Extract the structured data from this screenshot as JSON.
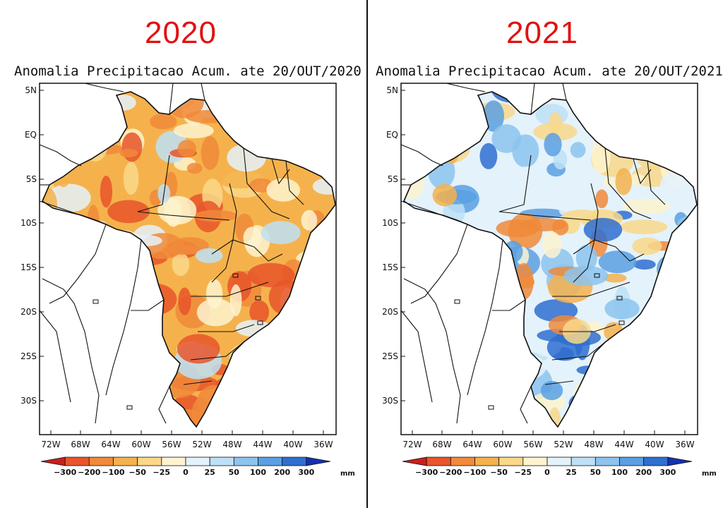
{
  "panels": [
    {
      "year": "2020",
      "title": "Anomalia Precipitacao Acum. ate 20/OUT/2020",
      "tone": "dry"
    },
    {
      "year": "2021",
      "title": "Anomalia Precipitacao Acum. ate 20/OUT/2021",
      "tone": "mixed"
    }
  ],
  "lat_labels": [
    "5N",
    "EQ",
    "5S",
    "10S",
    "15S",
    "20S",
    "25S",
    "30S"
  ],
  "lon_labels": [
    "72W",
    "68W",
    "64W",
    "60W",
    "56W",
    "52W",
    "48W",
    "44W",
    "40W",
    "36W"
  ],
  "colorbar": {
    "labels": [
      "-300",
      "-200",
      "-100",
      "-50",
      "-25",
      "0",
      "25",
      "50",
      "100",
      "200",
      "300"
    ],
    "colors": [
      "#c8201c",
      "#e8552a",
      "#f08a3a",
      "#f5b24c",
      "#f9d889",
      "#fdf3cf",
      "#e4f2fb",
      "#bde0f6",
      "#8cc4ee",
      "#5aa0e2",
      "#2f6fd0",
      "#1530b0"
    ],
    "unit": "mm"
  }
}
